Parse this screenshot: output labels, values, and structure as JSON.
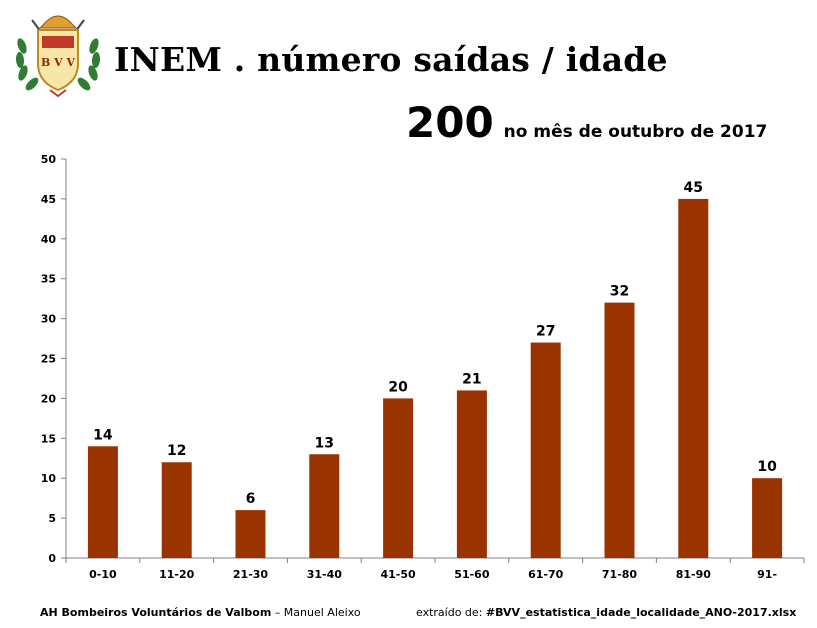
{
  "header": {
    "title": "INEM . número saídas / idade",
    "total": "200",
    "period": "no mês de outubro de 2017",
    "logo_text": "B V V"
  },
  "footer": {
    "org": "AH Bombeiros Voluntários de Valbom",
    "dash": " – ",
    "author": "Manuel Aleixo",
    "source_label": "extraído de: ",
    "source_file": "#BVV_estatistica_idade_localidade_ANO-2017.xlsx"
  },
  "colors": {
    "bar": "#993300",
    "axis": "#808080",
    "laurel": "#2e7d32",
    "logo_red": "#c0392b",
    "logo_gold": "#e0a030"
  },
  "chart_data": {
    "type": "bar",
    "categories": [
      "0-10",
      "11-20",
      "21-30",
      "31-40",
      "41-50",
      "51-60",
      "61-70",
      "71-80",
      "81-90",
      "91-"
    ],
    "values": [
      14,
      12,
      6,
      13,
      20,
      21,
      27,
      32,
      45,
      10
    ],
    "ylim": [
      0,
      50
    ],
    "yticks": [
      0,
      5,
      10,
      15,
      20,
      25,
      30,
      35,
      40,
      45,
      50
    ],
    "grid": false,
    "data_labels": true,
    "xlabel": "",
    "ylabel": ""
  }
}
